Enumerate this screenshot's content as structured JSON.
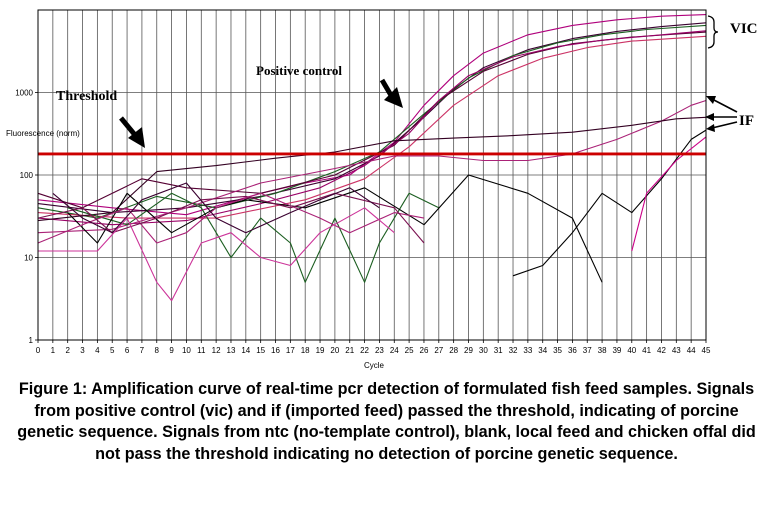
{
  "chart_data": {
    "type": "line",
    "xlabel": "Cycle",
    "ylabel": "Fluorescence (norm)",
    "xlim": [
      0,
      45
    ],
    "ylim": [
      1,
      10000
    ],
    "y_scale": "log",
    "grid": true,
    "x_ticks": [
      "0",
      "1",
      "2",
      "3",
      "4",
      "5",
      "6",
      "7",
      "8",
      "9",
      "10",
      "11",
      "12",
      "13",
      "14",
      "15",
      "16",
      "17",
      "18",
      "19",
      "20",
      "21",
      "22",
      "23",
      "24",
      "25",
      "26",
      "27",
      "28",
      "29",
      "30",
      "31",
      "32",
      "33",
      "34",
      "35",
      "36",
      "37",
      "38",
      "39",
      "40",
      "41",
      "42",
      "43",
      "44",
      "45"
    ],
    "y_ticks": [
      {
        "value": 1,
        "label": "1"
      },
      {
        "value": 10,
        "label": "10"
      },
      {
        "value": 100,
        "label": "100"
      },
      {
        "value": 1000,
        "label": "1000"
      }
    ],
    "threshold": {
      "value": 180,
      "color": "#cc0000"
    },
    "annotations": [
      {
        "text": "Threshold"
      },
      {
        "text": "Positive control"
      },
      {
        "text": "VIC"
      },
      {
        "text": "IF"
      }
    ],
    "series": [
      {
        "color": "#b0007c",
        "points": [
          [
            0,
            50
          ],
          [
            5,
            40
          ],
          [
            10,
            33
          ],
          [
            15,
            60
          ],
          [
            18,
            80
          ],
          [
            21,
            100
          ],
          [
            24,
            250
          ],
          [
            26,
            700
          ],
          [
            28,
            1600
          ],
          [
            30,
            3000
          ],
          [
            33,
            5000
          ],
          [
            36,
            6500
          ],
          [
            39,
            7600
          ],
          [
            42,
            8400
          ],
          [
            45,
            8800
          ]
        ]
      },
      {
        "color": "#3a0030",
        "points": [
          [
            0,
            45
          ],
          [
            5,
            35
          ],
          [
            10,
            40
          ],
          [
            15,
            55
          ],
          [
            20,
            90
          ],
          [
            23,
            170
          ],
          [
            26,
            500
          ],
          [
            28,
            1100
          ],
          [
            30,
            2000
          ],
          [
            33,
            3300
          ],
          [
            36,
            4500
          ],
          [
            39,
            5500
          ],
          [
            42,
            6300
          ],
          [
            45,
            7000
          ]
        ]
      },
      {
        "color": "#1b5e20",
        "points": [
          [
            0,
            40
          ],
          [
            4,
            30
          ],
          [
            8,
            55
          ],
          [
            12,
            40
          ],
          [
            16,
            60
          ],
          [
            20,
            110
          ],
          [
            23,
            190
          ],
          [
            26,
            550
          ],
          [
            29,
            1500
          ],
          [
            32,
            2800
          ],
          [
            35,
            4000
          ],
          [
            38,
            5000
          ],
          [
            41,
            5800
          ],
          [
            45,
            6500
          ]
        ]
      },
      {
        "color": "#cc3366",
        "points": [
          [
            0,
            35
          ],
          [
            6,
            30
          ],
          [
            12,
            30
          ],
          [
            18,
            50
          ],
          [
            22,
            90
          ],
          [
            25,
            220
          ],
          [
            28,
            700
          ],
          [
            31,
            1600
          ],
          [
            34,
            2600
          ],
          [
            37,
            3500
          ],
          [
            40,
            4200
          ],
          [
            45,
            4800
          ]
        ]
      },
      {
        "color": "#550033",
        "points": [
          [
            0,
            60
          ],
          [
            3,
            40
          ],
          [
            7,
            90
          ],
          [
            10,
            70
          ],
          [
            15,
            60
          ],
          [
            20,
            100
          ],
          [
            24,
            230
          ],
          [
            27,
            800
          ],
          [
            30,
            1800
          ],
          [
            33,
            2900
          ],
          [
            36,
            3900
          ],
          [
            40,
            4700
          ],
          [
            45,
            5400
          ]
        ]
      },
      {
        "color": "#990066",
        "points": [
          [
            0,
            30
          ],
          [
            5,
            25
          ],
          [
            10,
            28
          ],
          [
            15,
            45
          ],
          [
            19,
            70
          ],
          [
            22,
            130
          ],
          [
            25,
            320
          ],
          [
            27,
            800
          ],
          [
            29,
            1600
          ],
          [
            32,
            2700
          ],
          [
            35,
            3600
          ],
          [
            38,
            4300
          ],
          [
            42,
            5000
          ],
          [
            45,
            5600
          ]
        ]
      },
      {
        "color": "#aa2277",
        "points": [
          [
            0,
            20
          ],
          [
            5,
            22
          ],
          [
            10,
            40
          ],
          [
            15,
            80
          ],
          [
            20,
            120
          ],
          [
            24,
            170
          ],
          [
            27,
            170
          ],
          [
            30,
            150
          ],
          [
            33,
            150
          ],
          [
            36,
            180
          ],
          [
            39,
            270
          ],
          [
            42,
            450
          ],
          [
            44,
            700
          ],
          [
            45,
            800
          ]
        ]
      },
      {
        "color": "#330022",
        "points": [
          [
            0,
            28
          ],
          [
            5,
            35
          ],
          [
            8,
            110
          ],
          [
            12,
            130
          ],
          [
            16,
            160
          ],
          [
            20,
            190
          ],
          [
            24,
            260
          ],
          [
            28,
            280
          ],
          [
            32,
            300
          ],
          [
            36,
            330
          ],
          [
            40,
            400
          ],
          [
            43,
            480
          ],
          [
            45,
            500
          ]
        ]
      },
      {
        "color": "#000000",
        "points": [
          [
            32,
            6
          ],
          [
            34,
            8
          ],
          [
            36,
            20
          ],
          [
            38,
            60
          ],
          [
            40,
            35
          ],
          [
            42,
            90
          ],
          [
            44,
            270
          ],
          [
            45,
            350
          ]
        ]
      },
      {
        "color": "#cc0088",
        "points": [
          [
            40,
            12
          ],
          [
            41,
            60
          ],
          [
            43,
            150
          ],
          [
            45,
            290
          ]
        ]
      },
      {
        "color": "#1b5e20",
        "points": [
          [
            2,
            40
          ],
          [
            6,
            25
          ],
          [
            9,
            60
          ],
          [
            11,
            40
          ],
          [
            13,
            10
          ],
          [
            15,
            30
          ],
          [
            17,
            15
          ],
          [
            18,
            5
          ],
          [
            20,
            30
          ],
          [
            22,
            5
          ],
          [
            23,
            15
          ],
          [
            25,
            60
          ],
          [
            27,
            40
          ]
        ]
      },
      {
        "color": "#000000",
        "points": [
          [
            2,
            35
          ],
          [
            4,
            15
          ],
          [
            6,
            60
          ],
          [
            9,
            20
          ],
          [
            12,
            40
          ],
          [
            14,
            50
          ],
          [
            18,
            40
          ],
          [
            22,
            70
          ],
          [
            26,
            25
          ],
          [
            29,
            100
          ],
          [
            33,
            60
          ],
          [
            36,
            30
          ],
          [
            38,
            5
          ]
        ]
      },
      {
        "color": "#aa2277",
        "points": [
          [
            0,
            15
          ],
          [
            3,
            25
          ],
          [
            6,
            40
          ],
          [
            8,
            15
          ],
          [
            10,
            20
          ],
          [
            12,
            40
          ],
          [
            15,
            60
          ],
          [
            19,
            30
          ],
          [
            21,
            20
          ],
          [
            24,
            35
          ],
          [
            26,
            30
          ]
        ]
      },
      {
        "color": "#7a1050",
        "points": [
          [
            0,
            30
          ],
          [
            3,
            40
          ],
          [
            5,
            20
          ],
          [
            8,
            30
          ],
          [
            11,
            50
          ],
          [
            14,
            55
          ],
          [
            17,
            40
          ],
          [
            20,
            60
          ],
          [
            24,
            40
          ],
          [
            26,
            15
          ]
        ]
      },
      {
        "color": "#3a0030",
        "points": [
          [
            1,
            60
          ],
          [
            3,
            30
          ],
          [
            5,
            20
          ],
          [
            7,
            50
          ],
          [
            10,
            80
          ],
          [
            12,
            30
          ],
          [
            14,
            20
          ],
          [
            17,
            35
          ],
          [
            19,
            50
          ],
          [
            21,
            70
          ],
          [
            23,
            40
          ]
        ]
      },
      {
        "color": "#cc3399",
        "points": [
          [
            0,
            12
          ],
          [
            4,
            12
          ],
          [
            6,
            30
          ],
          [
            8,
            5
          ],
          [
            9,
            3
          ],
          [
            11,
            15
          ],
          [
            13,
            20
          ],
          [
            15,
            10
          ],
          [
            17,
            8
          ],
          [
            19,
            20
          ],
          [
            22,
            40
          ],
          [
            24,
            20
          ]
        ]
      }
    ]
  },
  "caption": "Figure 1: Amplification curve of real-time pcr detection of formulated fish feed samples. Signals from positive control (vic) and if (imported feed) passed the threshold, indicating of porcine genetic sequence. Signals from ntc (no-template control), blank, local feed and chicken offal did not pass the threshold indicating no detection of porcine genetic sequence."
}
